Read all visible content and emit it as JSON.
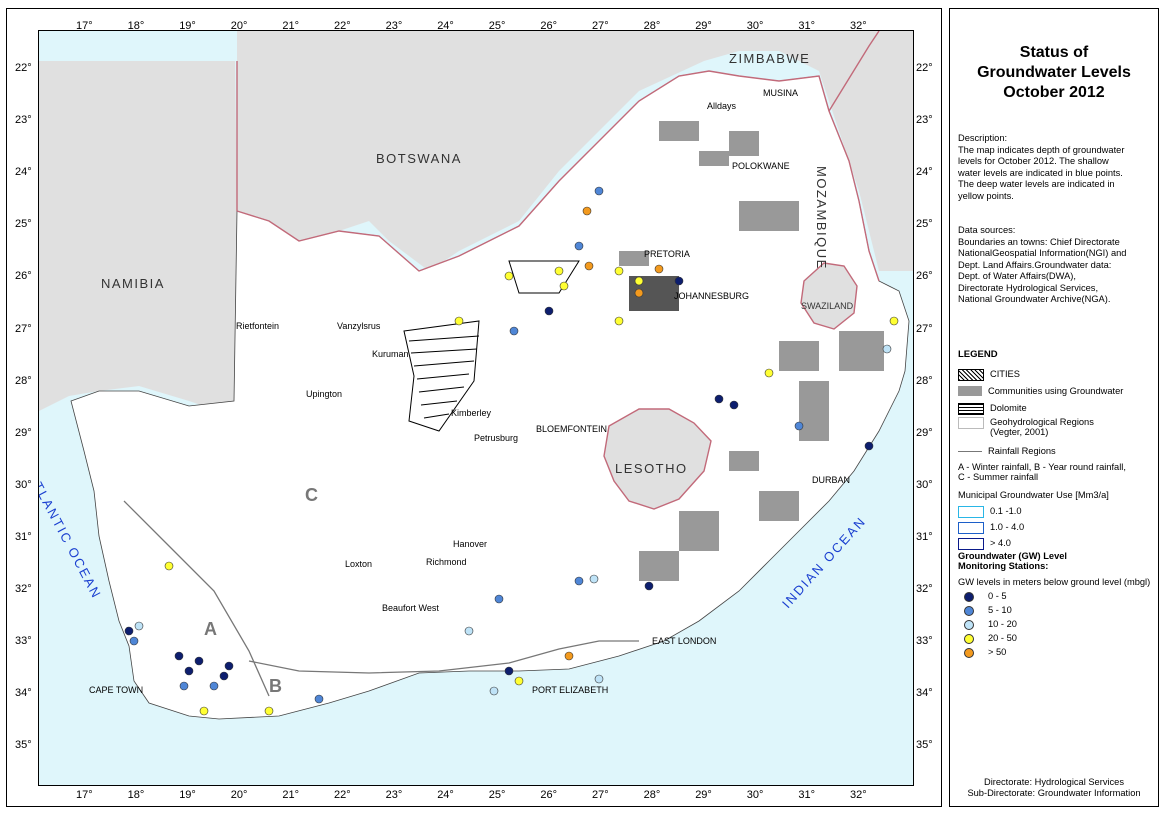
{
  "title_lines": [
    "Status of",
    "Groundwater Levels",
    "October 2012"
  ],
  "description": [
    "Description:",
    "The map indicates depth of groundwater",
    "levels for October 2012. The shallow",
    "water levels are indicated in blue points.",
    "The deep water levels are indicated in",
    "yellow points."
  ],
  "data_sources": [
    "Data sources:",
    "Boundaries an towns: Chief Directorate",
    "NationalGeospatial Information(NGI) and",
    "Dept. Land Affairs.Groundwater data:",
    "Dept. of Water Affairs(DWA),",
    "Directorate Hydrological Services,",
    "National Groundwater Archive(NGA)."
  ],
  "legend": {
    "heading": "LEGEND",
    "cities": "CITIES",
    "communities": "Communities using Groundwater",
    "dolomite": "Dolomite",
    "geohydro": [
      "Geohydrological Regions",
      "(Vegter, 2001)"
    ],
    "rainfall": "Rainfall Regions",
    "rainfall_note": [
      "A - Winter rainfall, B - Year round rainfall,",
      "C - Summer rainfall"
    ],
    "municipal_title": "Municipal Groundwater Use [Mm3/a]",
    "municipal": [
      {
        "label": "0.1 -1.0",
        "color": "#29b6e6"
      },
      {
        "label": "1.0 - 4.0",
        "color": "#1c5fc9"
      },
      {
        "label": "> 4.0",
        "color": "#0a1a8a"
      }
    ],
    "stations_title": [
      "Groundwater (GW) Level",
      "Monitoring Stations:"
    ],
    "stations_sub": "GW levels in meters below ground level (mbgl)",
    "classes": [
      {
        "label": "0 - 5",
        "color": "#0d1e6e"
      },
      {
        "label": "5 - 10",
        "color": "#4f86d6"
      },
      {
        "label": "10 - 20",
        "color": "#bfe3f7"
      },
      {
        "label": "20 - 50",
        "color": "#ffff33"
      },
      {
        "label": "> 50",
        "color": "#f39a1e"
      }
    ]
  },
  "footer": [
    "Directorate: Hydrological Services",
    "Sub-Directorate: Groundwater Information"
  ],
  "lon_labels": [
    "17°",
    "18°",
    "19°",
    "20°",
    "21°",
    "22°",
    "23°",
    "24°",
    "25°",
    "26°",
    "27°",
    "28°",
    "29°",
    "30°",
    "31°",
    "32°"
  ],
  "lat_labels": [
    "22°",
    "23°",
    "24°",
    "25°",
    "26°",
    "27°",
    "28°",
    "29°",
    "30°",
    "31°",
    "32°",
    "33°",
    "34°",
    "35°"
  ],
  "countries": {
    "zimbabwe": "ZIMBABWE",
    "botswana": "BOTSWANA",
    "namibia": "NAMIBIA",
    "mozambique": "MOZAMBIQUE",
    "swaziland": "SWAZILAND",
    "lesotho": "LESOTHO"
  },
  "oceans": {
    "atlantic": "ATLANTIC OCEAN",
    "indian": "INDIAN OCEAN"
  },
  "regions": {
    "a": "A",
    "b": "B",
    "c": "C"
  },
  "towns": {
    "alldays": "Alldays",
    "musina": "MUSINA",
    "polokwane": "POLOKWANE",
    "pretoria": "PRETORIA",
    "johannesburg": "JOHANNESBURG",
    "rietfontein": "Rietfontein",
    "vanzylsrus": "Vanzylsrus",
    "kuruman": "Kuruman",
    "upington": "Upington",
    "kimberley": "Kimberley",
    "petrusburg": "Petrusburg",
    "bloemfontein": "BLOEMFONTEIN",
    "durban": "DURBAN",
    "hanover": "Hanover",
    "richmond": "Richmond",
    "loxton": "Loxton",
    "beaufort_west": "Beaufort West",
    "east_london": "EAST LONDON",
    "port_elizabeth": "PORT ELIZABETH",
    "cape_town": "CAPE TOWN"
  }
}
